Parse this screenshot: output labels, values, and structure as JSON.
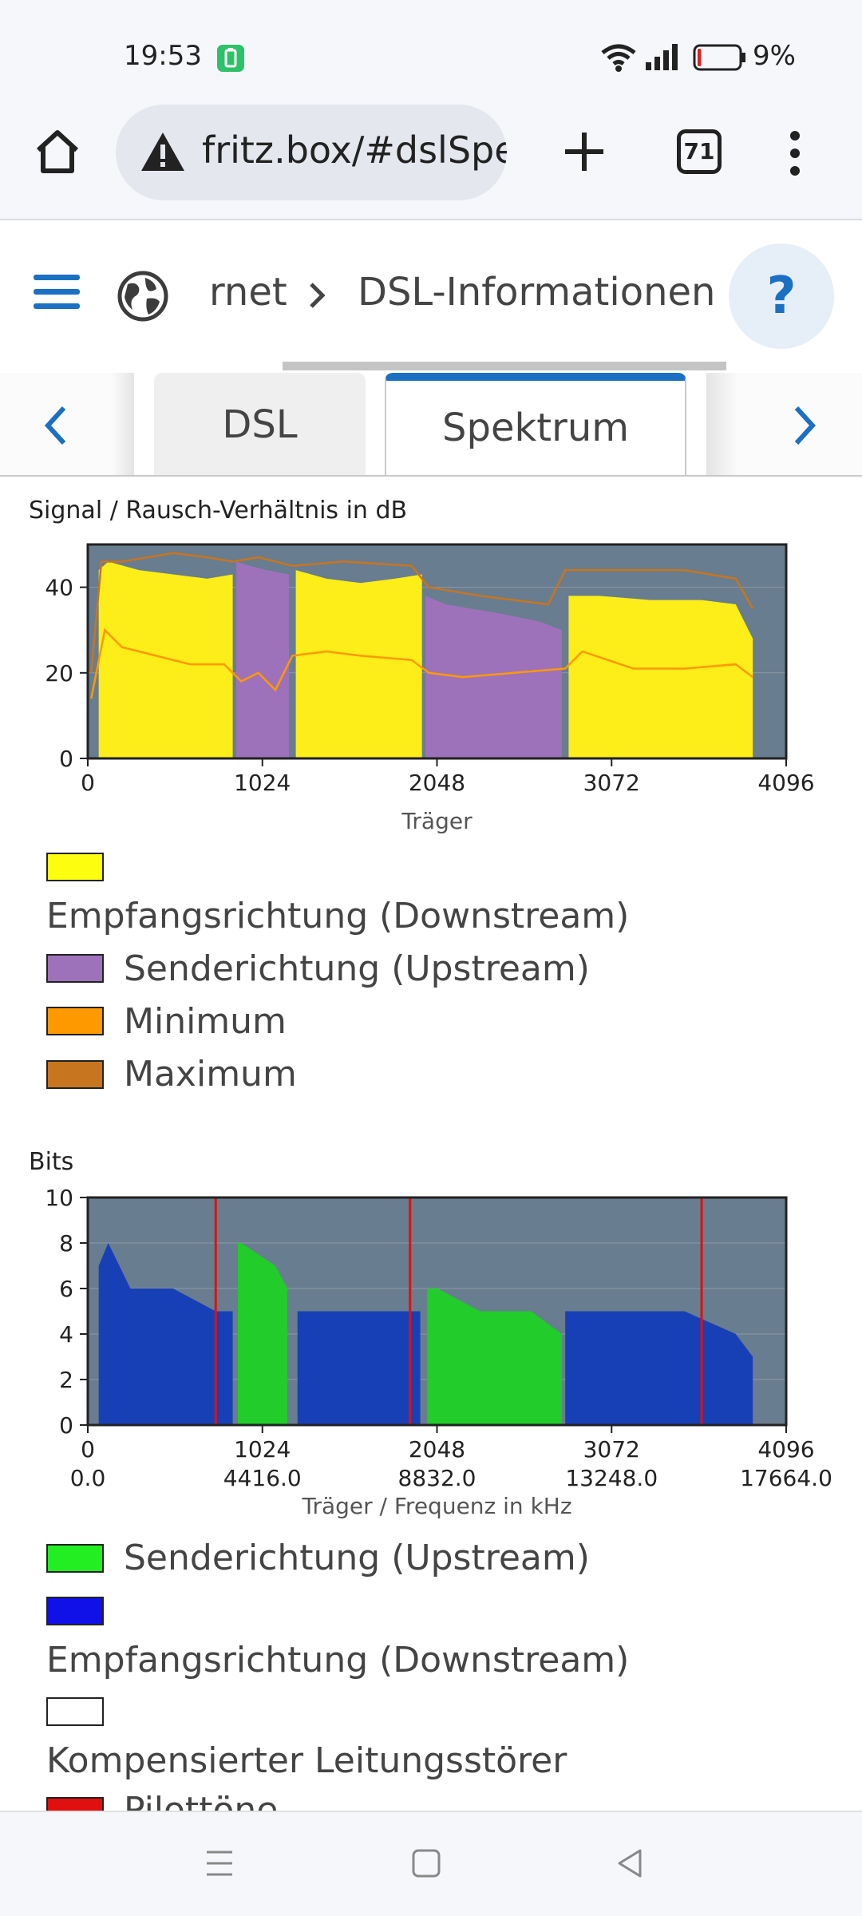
{
  "status_bar": {
    "time": "19:53",
    "battery_percent": "9%",
    "battery_level": 0.09
  },
  "browser": {
    "url": "fritz.box/#dslSpe",
    "tab_count": "71"
  },
  "breadcrumb": {
    "parent": "rnet",
    "current": "DSL-Informationen"
  },
  "help_label": "?",
  "tabs": [
    {
      "label": "DSL"
    },
    {
      "label": "Spektrum"
    }
  ],
  "colors": {
    "accent": "#1b70c4",
    "plot_bg": "#687d8f",
    "downstream_snr": "#fded18",
    "upstream_snr": "#9d72bb",
    "minimum": "#ff9900",
    "maximum": "#c87520",
    "upstream_bits": "#22cc2a",
    "downstream_bits": "#1840b6",
    "pilot": "#e01010"
  },
  "chart_data": [
    {
      "type": "area",
      "title": "Signal / Rausch-Verhältnis in dB",
      "xlabel": "Träger",
      "ylabel": "",
      "xlim": [
        0,
        4096
      ],
      "ylim": [
        0,
        50
      ],
      "x_ticks": [
        0,
        1024,
        2048,
        3072,
        4096
      ],
      "y_ticks": [
        0,
        20,
        40
      ],
      "x_tick_labels": [
        "0",
        "1024",
        "2048",
        "3072",
        "4096"
      ],
      "y_tick_labels": [
        "0",
        "20",
        "40"
      ],
      "series": [
        {
          "name": "Empfangsrichtung (Downstream)",
          "segments": [
            {
              "x": [
                64,
                120,
                300,
                500,
                700,
                850
              ],
              "y": [
                44,
                46,
                44,
                43,
                42,
                43
              ]
            },
            {
              "x": [
                1220,
                1400,
                1600,
                1800,
                1960
              ],
              "y": [
                44,
                42,
                41,
                42,
                43
              ]
            },
            {
              "x": [
                2820,
                3000,
                3300,
                3600,
                3800,
                3900
              ],
              "y": [
                38,
                38,
                37,
                37,
                36,
                28
              ]
            }
          ]
        },
        {
          "name": "Senderichtung (Upstream)",
          "segments": [
            {
              "x": [
                870,
                950,
                1050,
                1180
              ],
              "y": [
                46,
                45,
                44,
                43
              ]
            },
            {
              "x": [
                1980,
                2100,
                2400,
                2650,
                2780
              ],
              "y": [
                38,
                36,
                34,
                32,
                30
              ]
            }
          ]
        },
        {
          "name": "Minimum",
          "x": [
            20,
            100,
            200,
            400,
            600,
            800,
            900,
            1000,
            1100,
            1200,
            1400,
            1600,
            1900,
            2000,
            2200,
            2500,
            2800,
            2900,
            3200,
            3500,
            3800,
            3900
          ],
          "y": [
            14,
            30,
            26,
            24,
            22,
            22,
            18,
            20,
            16,
            24,
            25,
            24,
            23,
            20,
            19,
            20,
            21,
            25,
            21,
            21,
            22,
            19
          ]
        },
        {
          "name": "Maximum",
          "x": [
            20,
            80,
            200,
            500,
            700,
            850,
            1000,
            1200,
            1500,
            1900,
            2000,
            2300,
            2700,
            2800,
            3000,
            3500,
            3800,
            3900
          ],
          "y": [
            20,
            46,
            46,
            48,
            47,
            46,
            47,
            45,
            46,
            45,
            40,
            38,
            36,
            44,
            44,
            44,
            42,
            35
          ]
        }
      ]
    },
    {
      "type": "area",
      "title": "Bits",
      "xlabel": "Träger / Frequenz in kHz",
      "ylabel": "",
      "xlim": [
        0,
        4096
      ],
      "ylim": [
        0,
        10
      ],
      "x_ticks": [
        0,
        1024,
        2048,
        3072,
        4096
      ],
      "y_ticks": [
        0,
        2,
        4,
        6,
        8,
        10
      ],
      "x_tick_labels": [
        "0",
        "1024",
        "2048",
        "3072",
        "4096"
      ],
      "x_tick_labels_freq": [
        "0.0",
        "4416.0",
        "8832.0",
        "13248.0",
        "17664.0"
      ],
      "y_tick_labels": [
        "0",
        "2",
        "4",
        "6",
        "8",
        "10"
      ],
      "pilot_tones": [
        750,
        1890,
        3600
      ],
      "series": [
        {
          "name": "Senderichtung (Upstream)",
          "segments": [
            {
              "x": [
                880,
                900,
                1100,
                1170
              ],
              "y": [
                8,
                8,
                7,
                6
              ]
            },
            {
              "x": [
                1990,
                2050,
                2300,
                2600,
                2780
              ],
              "y": [
                6,
                6,
                5,
                5,
                4
              ]
            }
          ]
        },
        {
          "name": "Empfangsrichtung (Downstream)",
          "segments": [
            {
              "x": [
                64,
                120,
                250,
                500,
                750,
                850
              ],
              "y": [
                7,
                8,
                6,
                6,
                5,
                5
              ]
            },
            {
              "x": [
                1230,
                1400,
                1700,
                1950
              ],
              "y": [
                5,
                5,
                5,
                5
              ]
            },
            {
              "x": [
                2800,
                3000,
                3500,
                3800,
                3900
              ],
              "y": [
                5,
                5,
                5,
                4,
                3
              ]
            }
          ]
        },
        {
          "name": "Kompensierter Leitungsstörer",
          "values": []
        },
        {
          "name": "Pilottöne",
          "x": [
            750,
            1890,
            3600
          ]
        }
      ]
    }
  ],
  "legend1": [
    {
      "label": "Empfangsrichtung (Downstream)"
    },
    {
      "label": "Senderichtung (Upstream)"
    },
    {
      "label": "Minimum"
    },
    {
      "label": "Maximum"
    }
  ],
  "legend2": [
    {
      "label": "Senderichtung (Upstream)"
    },
    {
      "label": "Empfangsrichtung (Downstream)"
    },
    {
      "label": "Kompensierter Leitungsstörer"
    },
    {
      "label": "Pilottöne"
    }
  ]
}
